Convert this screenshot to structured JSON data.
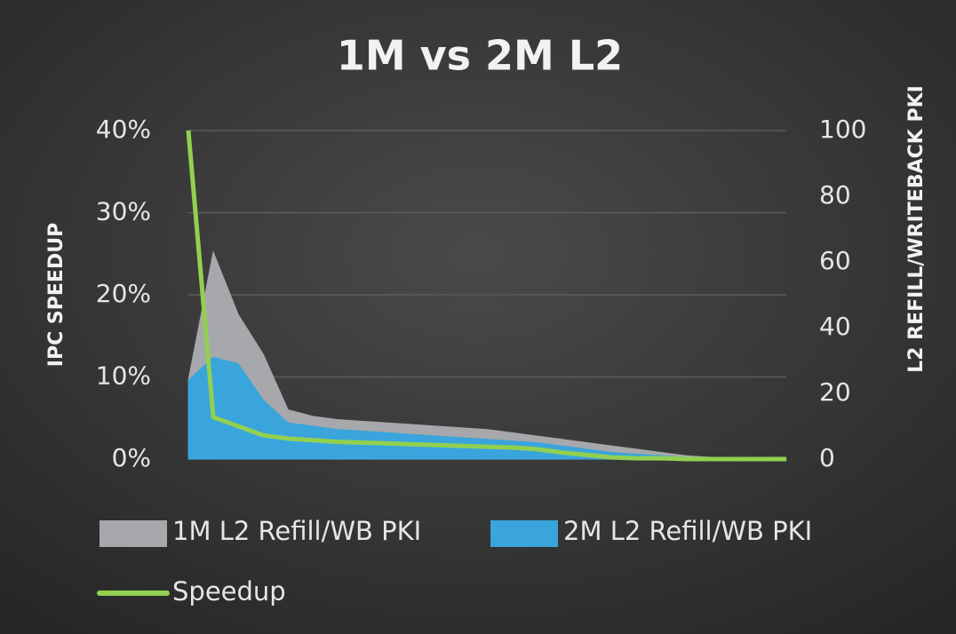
{
  "chart_data": {
    "type": "area",
    "title": "1M vs 2M L2",
    "y_label": "IPC SPEEDUP",
    "y2_label": "L2 REFILL/WRITEBACK PKI",
    "categories": [
      null,
      null,
      null,
      null,
      null,
      null,
      null,
      null,
      null,
      null,
      null,
      null,
      null,
      null,
      null,
      null,
      null,
      null,
      null,
      null,
      null,
      null,
      null,
      null,
      null
    ],
    "series": [
      {
        "name": "1M L2 Refill/WB PKI",
        "type": "area",
        "axis": "y2",
        "color": "#a6a8ab",
        "values": [
          24,
          63,
          44,
          32,
          15,
          13,
          12,
          11.5,
          11,
          10.5,
          10,
          9.5,
          9,
          8,
          7,
          6,
          5,
          4,
          3,
          2,
          1,
          0.5,
          0.3,
          0.2,
          0.1
        ]
      },
      {
        "name": "2M L2 Refill/WB PKI",
        "type": "area",
        "axis": "y2",
        "color": "#3aa4dc",
        "values": [
          24,
          31,
          29,
          18,
          11,
          10,
          9,
          8.5,
          8,
          7.5,
          7,
          6.5,
          6,
          5.5,
          5,
          4,
          3,
          2,
          1.5,
          1,
          0.5,
          0.3,
          0.2,
          0.1,
          0.1
        ]
      },
      {
        "name": "Speedup",
        "type": "line",
        "axis": "y",
        "color": "#92d050",
        "values": [
          40,
          5.1,
          4,
          2.9,
          2.5,
          2.3,
          2.1,
          2,
          1.9,
          1.8,
          1.7,
          1.6,
          1.5,
          1.4,
          1.2,
          0.8,
          0.5,
          0.2,
          0.1,
          0.1,
          0,
          0,
          0,
          0,
          0
        ]
      }
    ],
    "ylim": [
      0,
      40
    ],
    "yticks": [
      {
        "value": 0,
        "label": "0%"
      },
      {
        "value": 10,
        "label": "10%"
      },
      {
        "value": 20,
        "label": "20%"
      },
      {
        "value": 30,
        "label": "30%"
      },
      {
        "value": 40,
        "label": "40%"
      }
    ],
    "y2lim": [
      0,
      100
    ],
    "y2ticks": [
      0,
      20,
      40,
      60,
      80,
      100
    ],
    "grid": true,
    "legend": "bottom"
  }
}
